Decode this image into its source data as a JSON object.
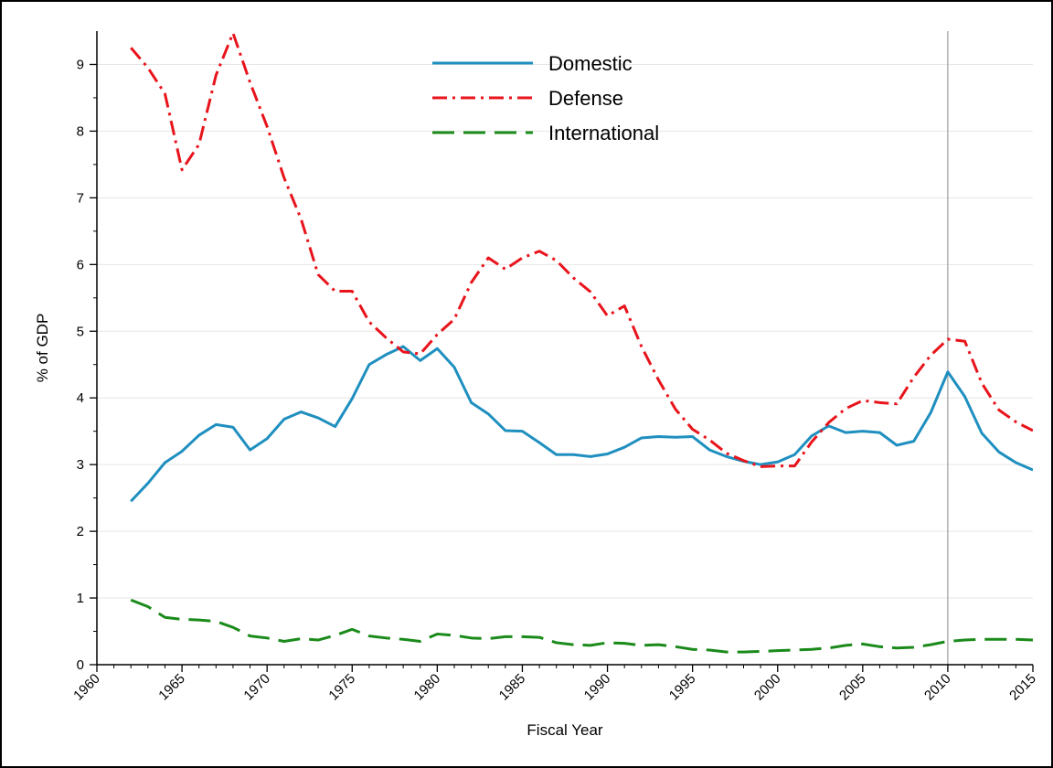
{
  "chart_data": {
    "type": "line",
    "xlabel": "Fiscal Year",
    "ylabel": "% of GDP",
    "xlim": [
      1960,
      2015
    ],
    "ylim": [
      0,
      9.5
    ],
    "xticks": [
      "1960",
      "1965",
      "1970",
      "1975",
      "1980",
      "1985",
      "1990",
      "1995",
      "2000",
      "2005",
      "2010",
      "2015"
    ],
    "yticks": [
      "0",
      "1",
      "2",
      "3",
      "4",
      "5",
      "6",
      "7",
      "8",
      "9"
    ],
    "grid": "horizontal",
    "legend_position": "top-center",
    "vertical_marker_x": 2010,
    "x": [
      1962,
      1963,
      1964,
      1965,
      1966,
      1967,
      1968,
      1969,
      1970,
      1971,
      1972,
      1973,
      1974,
      1975,
      1976,
      1977,
      1978,
      1979,
      1980,
      1981,
      1982,
      1983,
      1984,
      1985,
      1986,
      1987,
      1988,
      1989,
      1990,
      1991,
      1992,
      1993,
      1994,
      1995,
      1996,
      1997,
      1998,
      1999,
      2000,
      2001,
      2002,
      2003,
      2004,
      2005,
      2006,
      2007,
      2008,
      2009,
      2010,
      2011,
      2012,
      2013,
      2014,
      2015
    ],
    "series": [
      {
        "name": "Domestic",
        "color": "#1f8fbf",
        "style": "solid",
        "values": [
          2.45,
          2.72,
          3.03,
          3.2,
          3.44,
          3.6,
          3.56,
          3.22,
          3.39,
          3.68,
          3.79,
          3.7,
          3.57,
          3.99,
          4.5,
          4.65,
          4.77,
          4.56,
          4.74,
          4.46,
          3.93,
          3.76,
          3.51,
          3.5,
          3.33,
          3.15,
          3.15,
          3.12,
          3.16,
          3.26,
          3.4,
          3.42,
          3.41,
          3.42,
          3.22,
          3.12,
          3.05,
          3.0,
          3.04,
          3.15,
          3.43,
          3.58,
          3.48,
          3.5,
          3.48,
          3.29,
          3.35,
          3.78,
          4.39,
          4.02,
          3.47,
          3.19,
          3.03,
          2.92
        ]
      },
      {
        "name": "Defense",
        "color": "#e8141c",
        "style": "dashdot",
        "values": [
          9.25,
          8.95,
          8.56,
          7.42,
          7.8,
          8.84,
          9.47,
          8.73,
          8.07,
          7.3,
          6.68,
          5.85,
          5.6,
          5.6,
          5.14,
          4.9,
          4.69,
          4.66,
          4.95,
          5.18,
          5.73,
          6.1,
          5.93,
          6.1,
          6.2,
          6.06,
          5.8,
          5.59,
          5.23,
          5.38,
          4.77,
          4.27,
          3.83,
          3.53,
          3.37,
          3.17,
          3.06,
          2.97,
          2.98,
          2.98,
          3.34,
          3.63,
          3.84,
          3.96,
          3.93,
          3.91,
          4.31,
          4.64,
          4.88,
          4.85,
          4.22,
          3.82,
          3.64,
          3.51
        ]
      },
      {
        "name": "International",
        "color": "#1a8a1a",
        "style": "dashed",
        "values": [
          0.97,
          0.87,
          0.71,
          0.68,
          0.67,
          0.65,
          0.56,
          0.43,
          0.4,
          0.35,
          0.39,
          0.37,
          0.44,
          0.53,
          0.43,
          0.4,
          0.38,
          0.35,
          0.46,
          0.44,
          0.4,
          0.39,
          0.42,
          0.42,
          0.41,
          0.33,
          0.3,
          0.29,
          0.33,
          0.32,
          0.29,
          0.3,
          0.27,
          0.23,
          0.22,
          0.19,
          0.19,
          0.2,
          0.21,
          0.22,
          0.23,
          0.25,
          0.29,
          0.31,
          0.27,
          0.25,
          0.26,
          0.3,
          0.35,
          0.37,
          0.38,
          0.38,
          0.38,
          0.37
        ]
      }
    ]
  }
}
